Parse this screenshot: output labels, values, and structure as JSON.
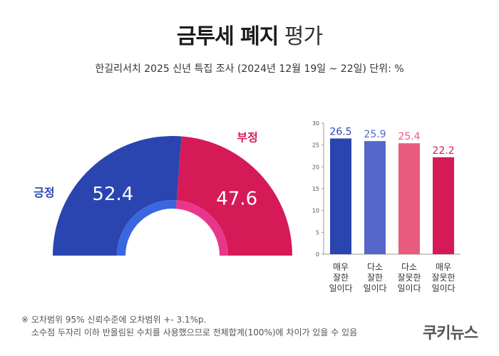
{
  "header": {
    "title_bold": "금투세 폐지",
    "title_light": "평가",
    "subtitle": "한길리서치 2025 신년 특집 조사 (2024년 12월 19일 ~ 22일) 단위: %"
  },
  "chart_data": [
    {
      "type": "pie",
      "subtype": "half-donut",
      "slices": [
        {
          "label": "긍정",
          "value": 52.4,
          "value_label": "52.4",
          "color": "#2a45b0"
        },
        {
          "label": "부정",
          "value": 47.6,
          "value_label": "47.6",
          "color": "#d61a57"
        }
      ]
    },
    {
      "type": "bar",
      "categories": [
        "매우\n잘한\n일이다",
        "다소\n잘한\n일이다",
        "다소\n잘못한\n일이다",
        "매우\n잘못한\n일이다"
      ],
      "values": [
        26.5,
        25.9,
        25.4,
        22.2
      ],
      "value_labels": [
        "26.5",
        "25.9",
        "25.4",
        "22.2"
      ],
      "colors": [
        "#2a45b0",
        "#5568c9",
        "#e85a7e",
        "#d61a57"
      ],
      "ylim": [
        0,
        30
      ],
      "yticks": [
        "0",
        "5",
        "10",
        "15",
        "20",
        "25",
        "30"
      ],
      "grid": false
    }
  ],
  "footnote": {
    "line1": "※ 오차범위 95% 신뢰수준에 오차범위 +- 3.1%p.",
    "line2": "소수점 두자리 이하 반올림된 수치를 사용했으므로 전체합계(100%)에 차이가 있을 수 있음"
  },
  "logo": "쿠키뉴스"
}
